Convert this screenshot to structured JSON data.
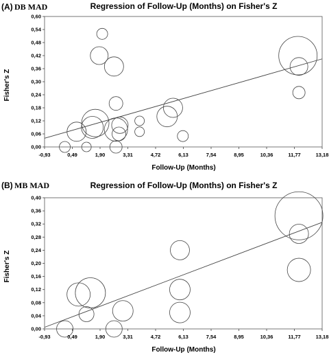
{
  "chart_data": [
    {
      "type": "scatter",
      "panel_label": "(A)",
      "subtitle": "DB MAD",
      "title": "Regression of Follow-Up (Months) on Fisher's Z",
      "xlabel": "Follow-Up (Months)",
      "ylabel": "Fisher's Z",
      "xlim": [
        -0.93,
        13.18
      ],
      "ylim": [
        0.0,
        0.6
      ],
      "x_ticks": [
        "-0,93",
        "0,49",
        "1,90",
        "3,31",
        "4,72",
        "6,13",
        "7,54",
        "8,95",
        "10,36",
        "11,77",
        "13,18"
      ],
      "y_ticks": [
        "0,00",
        "0,06",
        "0,12",
        "0,18",
        "0,24",
        "0,30",
        "0,36",
        "0,42",
        "0,48",
        "0,54",
        "0,60"
      ],
      "regression_line": {
        "x": [
          -0.93,
          13.18
        ],
        "y": [
          0.04,
          0.405
        ]
      },
      "points": [
        {
          "x": 0.1,
          "y": 0.0,
          "r": 8
        },
        {
          "x": 0.7,
          "y": 0.07,
          "r": 14
        },
        {
          "x": 1.2,
          "y": 0.0,
          "r": 7
        },
        {
          "x": 1.5,
          "y": 0.09,
          "r": 16
        },
        {
          "x": 1.65,
          "y": 0.11,
          "r": 20
        },
        {
          "x": 2.0,
          "y": 0.52,
          "r": 8
        },
        {
          "x": 1.85,
          "y": 0.42,
          "r": 13
        },
        {
          "x": 2.6,
          "y": 0.37,
          "r": 14
        },
        {
          "x": 2.7,
          "y": 0.2,
          "r": 10
        },
        {
          "x": 2.7,
          "y": 0.08,
          "r": 17
        },
        {
          "x": 2.85,
          "y": 0.06,
          "r": 10
        },
        {
          "x": 2.9,
          "y": 0.1,
          "r": 12
        },
        {
          "x": 2.7,
          "y": 0.0,
          "r": 9
        },
        {
          "x": 3.9,
          "y": 0.12,
          "r": 7
        },
        {
          "x": 3.9,
          "y": 0.07,
          "r": 7
        },
        {
          "x": 5.3,
          "y": 0.14,
          "r": 15
        },
        {
          "x": 5.6,
          "y": 0.18,
          "r": 14
        },
        {
          "x": 6.1,
          "y": 0.05,
          "r": 8
        },
        {
          "x": 11.95,
          "y": 0.42,
          "r": 28
        },
        {
          "x": 12.0,
          "y": 0.37,
          "r": 13
        },
        {
          "x": 12.0,
          "y": 0.25,
          "r": 9
        }
      ]
    },
    {
      "type": "scatter",
      "panel_label": "(B)",
      "subtitle": "MB MAD",
      "title": "Regression of Follow-Up (Months) on Fisher's Z",
      "xlabel": "Follow-Up (Months)",
      "ylabel": "Fisher's Z",
      "xlim": [
        -0.93,
        13.18
      ],
      "ylim": [
        0.0,
        0.4
      ],
      "x_ticks": [
        "-0,93",
        "0,49",
        "1,90",
        "3,31",
        "4,72",
        "6,13",
        "7,54",
        "8,95",
        "10,36",
        "11,77",
        "13,18"
      ],
      "y_ticks": [
        "0,00",
        "0,04",
        "0,08",
        "0,12",
        "0,16",
        "0,20",
        "0,24",
        "0,28",
        "0,32",
        "0,36",
        "0,40"
      ],
      "regression_line": {
        "x": [
          -0.93,
          13.18
        ],
        "y": [
          0.005,
          0.325
        ]
      },
      "points": [
        {
          "x": 0.1,
          "y": 0.0,
          "r": 12
        },
        {
          "x": 0.8,
          "y": 0.105,
          "r": 17
        },
        {
          "x": 1.4,
          "y": 0.11,
          "r": 22
        },
        {
          "x": 1.2,
          "y": 0.045,
          "r": 11
        },
        {
          "x": 2.6,
          "y": 0.0,
          "r": 12
        },
        {
          "x": 3.05,
          "y": 0.055,
          "r": 15
        },
        {
          "x": 5.95,
          "y": 0.24,
          "r": 14
        },
        {
          "x": 5.95,
          "y": 0.12,
          "r": 15
        },
        {
          "x": 5.95,
          "y": 0.05,
          "r": 15
        },
        {
          "x": 12.0,
          "y": 0.345,
          "r": 35
        },
        {
          "x": 12.0,
          "y": 0.29,
          "r": 14
        },
        {
          "x": 12.0,
          "y": 0.18,
          "r": 17
        }
      ]
    }
  ]
}
